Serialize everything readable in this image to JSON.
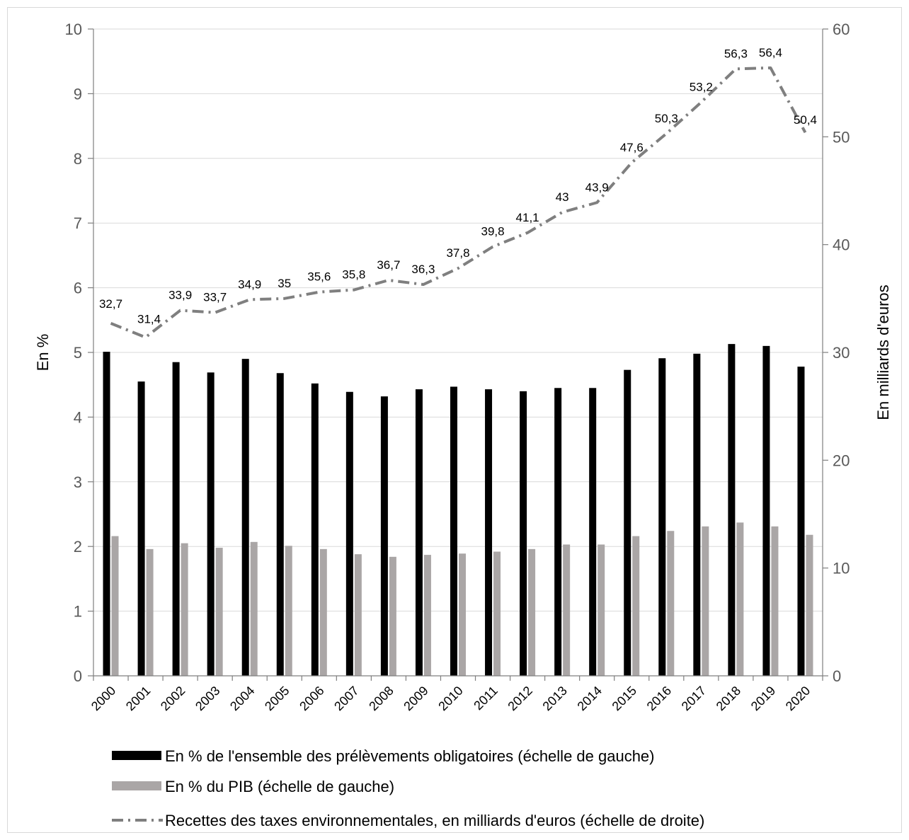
{
  "chart_data": {
    "type": "bar",
    "categories": [
      "2000",
      "2001",
      "2002",
      "2003",
      "2004",
      "2005",
      "2006",
      "2007",
      "2008",
      "2009",
      "2010",
      "2011",
      "2012",
      "2013",
      "2014",
      "2015",
      "2016",
      "2017",
      "2018",
      "2019",
      "2020"
    ],
    "series": [
      {
        "name": "En % de l'ensemble des prélèvements obligatoires (échelle de gauche)",
        "type": "bar",
        "axis": "left",
        "color": "#000000",
        "values": [
          5.01,
          4.55,
          4.85,
          4.69,
          4.9,
          4.68,
          4.52,
          4.39,
          4.32,
          4.43,
          4.47,
          4.43,
          4.4,
          4.45,
          4.45,
          4.73,
          4.91,
          4.98,
          5.13,
          5.1,
          4.78
        ]
      },
      {
        "name": "En % du PIB (échelle de gauche)",
        "type": "bar",
        "axis": "left",
        "color": "#aaa6a6",
        "values": [
          2.16,
          1.96,
          2.05,
          1.98,
          2.07,
          2.01,
          1.96,
          1.88,
          1.84,
          1.87,
          1.89,
          1.92,
          1.96,
          2.03,
          2.03,
          2.16,
          2.24,
          2.31,
          2.37,
          2.31,
          2.18
        ]
      },
      {
        "name": "Recettes des taxes environnementales, en milliards d'euros (échelle de droite)",
        "type": "line",
        "axis": "right",
        "color": "#7f7f7f",
        "style": "dash-dot",
        "values": [
          32.7,
          31.4,
          33.9,
          33.7,
          34.9,
          35,
          35.6,
          35.8,
          36.7,
          36.3,
          37.8,
          39.8,
          41.1,
          43,
          43.9,
          47.6,
          50.3,
          53.2,
          56.3,
          56.4,
          50.4
        ],
        "labels": [
          "32,7",
          "31,4",
          "33,9",
          "33,7",
          "34,9",
          "35",
          "35,6",
          "35,8",
          "36,7",
          "36,3",
          "37,8",
          "39,8",
          "41,1",
          "43",
          "43,9",
          "47,6",
          "50,3",
          "53,2",
          "56,3",
          "56,4",
          "50,4"
        ]
      }
    ],
    "yleft": {
      "label": "En  %",
      "ticks": [
        "0",
        "1",
        "2",
        "3",
        "4",
        "5",
        "6",
        "7",
        "8",
        "9",
        "10"
      ],
      "lim": [
        0,
        10
      ]
    },
    "yright": {
      "label": "En milliards d'euros",
      "ticks": [
        "0",
        "10",
        "20",
        "30",
        "40",
        "50",
        "60"
      ],
      "lim": [
        0,
        60
      ]
    },
    "grid": true,
    "legend_placement": "bottom"
  }
}
